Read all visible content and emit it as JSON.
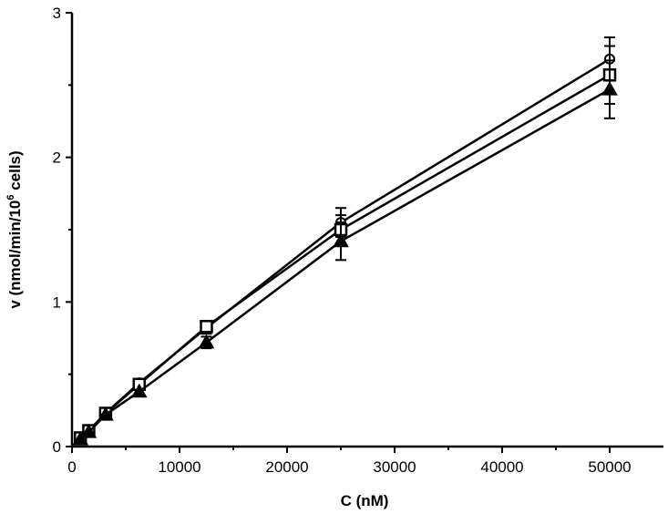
{
  "chart_data": {
    "type": "line",
    "xlabel": "C (nM)",
    "ylabel_main": "v (nmol/min/10",
    "ylabel_sup": "6",
    "ylabel_tail": " cells)",
    "xlim": [
      0,
      55000
    ],
    "ylim": [
      0,
      3
    ],
    "x_ticks": [
      0,
      10000,
      20000,
      30000,
      40000,
      50000
    ],
    "y_ticks": [
      0,
      1,
      2,
      3
    ],
    "x_tick_labels": [
      "0",
      "10000",
      "20000",
      "30000",
      "40000",
      "50000"
    ],
    "y_tick_labels": [
      "0",
      "1",
      "2",
      "3"
    ],
    "grid": false,
    "series": [
      {
        "marker": "circle",
        "x": [
          781,
          1562,
          3125,
          6250,
          12500,
          25000,
          50000
        ],
        "y": [
          0.06,
          0.11,
          0.23,
          0.44,
          0.82,
          1.55,
          2.68
        ],
        "err": [
          0.01,
          0.01,
          0.02,
          0.03,
          0.04,
          0.1,
          0.15
        ]
      },
      {
        "marker": "square",
        "x": [
          781,
          1562,
          3125,
          6250,
          12500,
          25000,
          50000
        ],
        "y": [
          0.06,
          0.11,
          0.23,
          0.43,
          0.83,
          1.5,
          2.57
        ],
        "err": [
          0.01,
          0.01,
          0.02,
          0.03,
          0.04,
          0.1,
          0.2
        ]
      },
      {
        "marker": "triangle",
        "x": [
          781,
          1562,
          3125,
          6250,
          12500,
          25000,
          50000
        ],
        "y": [
          0.05,
          0.1,
          0.22,
          0.38,
          0.72,
          1.42,
          2.47
        ],
        "err": [
          0.01,
          0.01,
          0.02,
          0.03,
          0.04,
          0.13,
          0.2
        ]
      }
    ]
  }
}
